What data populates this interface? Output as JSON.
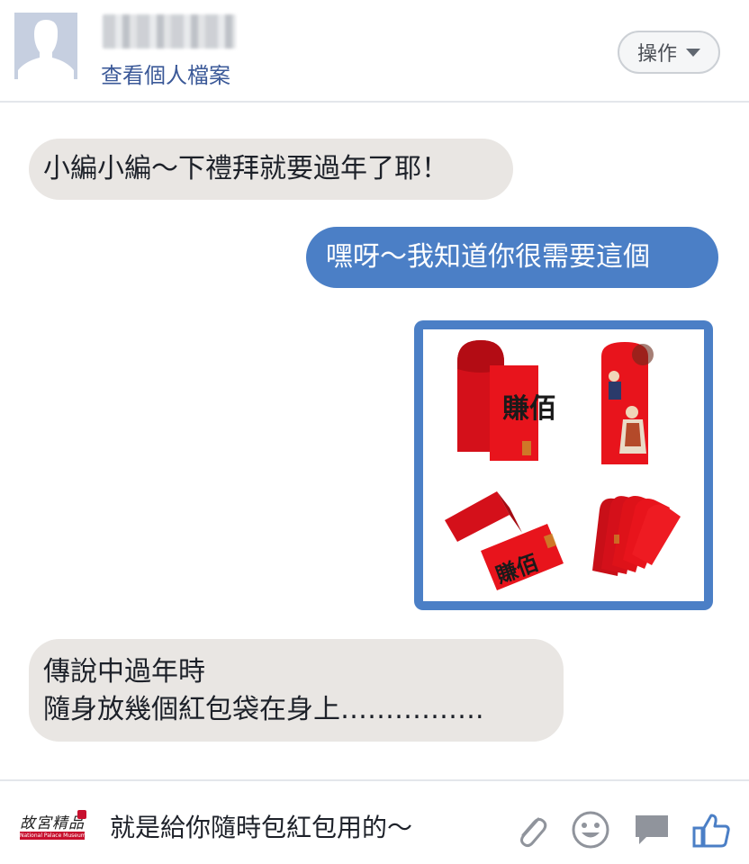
{
  "header": {
    "profile_link": "查看個人檔案",
    "action_label": "操作"
  },
  "messages": [
    {
      "direction": "incoming",
      "lines": [
        "小編小編～下禮拜就要過年了耶！"
      ]
    },
    {
      "direction": "outgoing",
      "lines": [
        "嘿呀～我知道你很需要這個"
      ]
    },
    {
      "direction": "outgoing",
      "type": "image",
      "image_text": [
        "賺佰"
      ]
    },
    {
      "direction": "incoming",
      "lines": [
        "傳說中過年時",
        "隨身放幾個紅包袋在身上……………."
      ]
    }
  ],
  "composer": {
    "logo_text": "故宮精品",
    "logo_subtext": "National Palace Museum Shop",
    "draft_text": "就是給你隨時包紅包用的～"
  },
  "icons": {
    "avatar": "avatar-icon",
    "attach": "paperclip-icon",
    "emoji": "emoji-icon",
    "sticker": "message-icon",
    "like": "thumbs-up-icon"
  },
  "colors": {
    "accent": "#4b7fc6",
    "incoming_bubble": "#e9e6e3",
    "link": "#3b5998",
    "envelope_red": "#e8141c"
  }
}
